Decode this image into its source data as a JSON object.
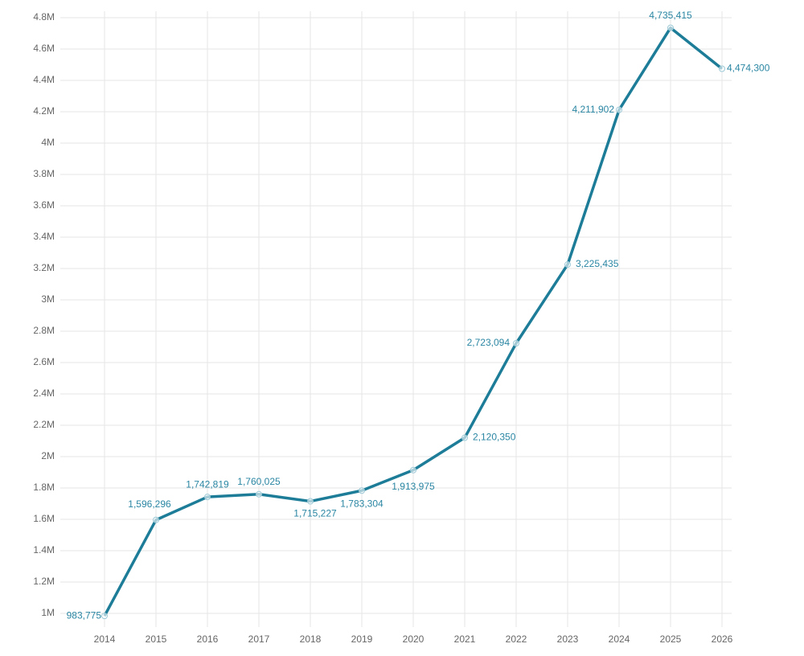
{
  "chart_data": {
    "type": "line",
    "categories": [
      "2014",
      "2015",
      "2016",
      "2017",
      "2018",
      "2019",
      "2020",
      "2021",
      "2022",
      "2023",
      "2024",
      "2025",
      "2026"
    ],
    "values": [
      983775,
      1596296,
      1742819,
      1760025,
      1715227,
      1783304,
      1913975,
      2120350,
      2723094,
      3225435,
      4211902,
      4735415,
      4474300
    ],
    "value_labels": [
      "983,775",
      "1,596,296",
      "1,742,819",
      "1,760,025",
      "1,715,227",
      "1,783,304",
      "1,913,975",
      "2,120,350",
      "2,723,094",
      "3,225,435",
      "4,211,902",
      "4,735,415",
      "4,474,300"
    ],
    "color": "#1d7d98",
    "ylim": [
      1000000,
      4800000
    ],
    "yticks": [
      {
        "value": 1000000,
        "label": "1M"
      },
      {
        "value": 1200000,
        "label": "1.2M"
      },
      {
        "value": 1400000,
        "label": "1.4M"
      },
      {
        "value": 1600000,
        "label": "1.6M"
      },
      {
        "value": 1800000,
        "label": "1.8M"
      },
      {
        "value": 2000000,
        "label": "2M"
      },
      {
        "value": 2200000,
        "label": "2.2M"
      },
      {
        "value": 2400000,
        "label": "2.4M"
      },
      {
        "value": 2600000,
        "label": "2.6M"
      },
      {
        "value": 2800000,
        "label": "2.8M"
      },
      {
        "value": 3000000,
        "label": "3M"
      },
      {
        "value": 3200000,
        "label": "3.2M"
      },
      {
        "value": 3400000,
        "label": "3.4M"
      },
      {
        "value": 3600000,
        "label": "3.6M"
      },
      {
        "value": 3800000,
        "label": "3.8M"
      },
      {
        "value": 4000000,
        "label": "4M"
      },
      {
        "value": 4200000,
        "label": "4.2M"
      },
      {
        "value": 4400000,
        "label": "4.4M"
      },
      {
        "value": 4600000,
        "label": "4.6M"
      },
      {
        "value": 4800000,
        "label": "4.8M"
      }
    ],
    "grid": true
  }
}
